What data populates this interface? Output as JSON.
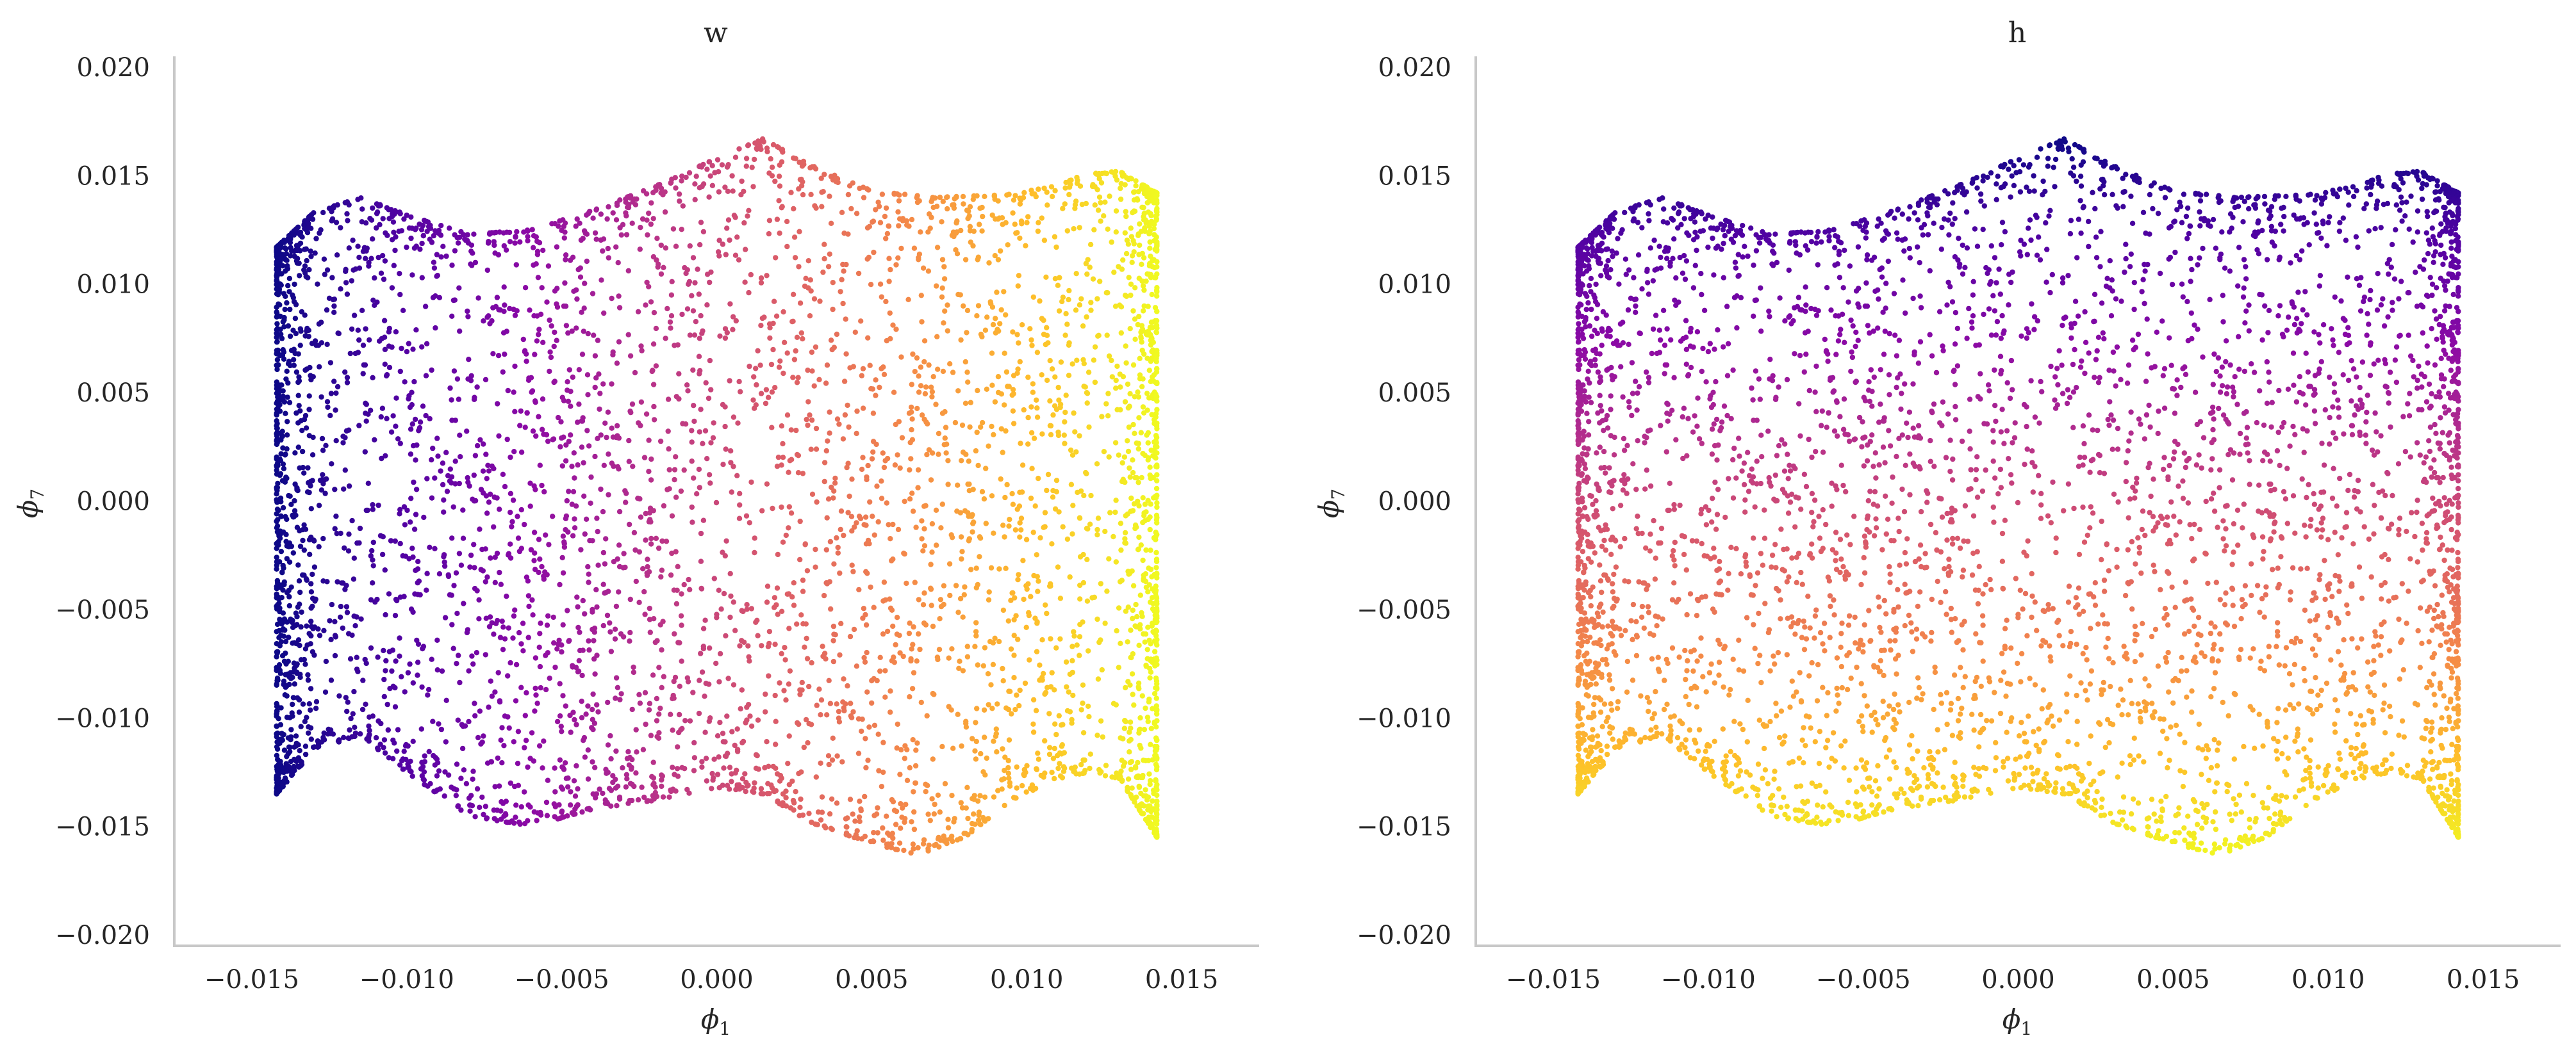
{
  "colors": {
    "background": "#ffffff",
    "axis_spine": "#c8c8c8",
    "text": "#262626",
    "colormap": "plasma",
    "colormap_stops": [
      "#0d0887",
      "#5302a3",
      "#8b0aa5",
      "#b83289",
      "#db5c68",
      "#f48849",
      "#febd2a",
      "#f0f921"
    ]
  },
  "chart_data": [
    {
      "type": "scatter",
      "title": "w",
      "xlabel": "ϕ",
      "xlabel_sub": "1",
      "ylabel": "ϕ",
      "ylabel_sub": "7",
      "xlim": [
        -0.0175,
        0.0175
      ],
      "ylim": [
        -0.0205,
        0.0205
      ],
      "xticks": [
        -0.015,
        -0.01,
        -0.005,
        0.0,
        0.005,
        0.01,
        0.015
      ],
      "yticks": [
        -0.02,
        -0.015,
        -0.01,
        -0.005,
        0.0,
        0.005,
        0.01,
        0.015,
        0.02
      ],
      "xtick_labels": [
        "−0.015",
        "−0.010",
        "−0.005",
        "0.000",
        "0.005",
        "0.010",
        "0.015"
      ],
      "ytick_labels": [
        "−0.020",
        "−0.015",
        "−0.010",
        "−0.005",
        "0.000",
        "0.005",
        "0.010",
        "0.015",
        "0.020"
      ],
      "grid": false,
      "color_by": "x",
      "point_count": 5000,
      "x_range": [
        -0.0142,
        0.0142
      ],
      "upper_boundary": {
        "x": [
          -0.0142,
          -0.013,
          -0.0115,
          -0.01,
          -0.008,
          -0.006,
          -0.004,
          -0.002,
          0.0,
          0.0015,
          0.003,
          0.005,
          0.007,
          0.009,
          0.0105,
          0.012,
          0.013,
          0.0142
        ],
        "y": [
          0.0117,
          0.0133,
          0.014,
          0.0132,
          0.0123,
          0.0125,
          0.0134,
          0.0145,
          0.0158,
          0.0167,
          0.0155,
          0.0143,
          0.014,
          0.0141,
          0.0144,
          0.0151,
          0.0152,
          0.0142
        ]
      },
      "lower_boundary": {
        "x": [
          -0.0142,
          -0.013,
          -0.0115,
          -0.01,
          -0.008,
          -0.006,
          -0.004,
          -0.002,
          0.0,
          0.0015,
          0.003,
          0.005,
          0.0065,
          0.008,
          0.0095,
          0.011,
          0.012,
          0.013,
          0.0142
        ],
        "y": [
          -0.0135,
          -0.0115,
          -0.0108,
          -0.0125,
          -0.0145,
          -0.015,
          -0.0142,
          -0.0138,
          -0.0132,
          -0.0135,
          -0.0148,
          -0.0158,
          -0.0163,
          -0.0155,
          -0.0138,
          -0.0128,
          -0.0125,
          -0.0128,
          -0.0155
        ]
      }
    },
    {
      "type": "scatter",
      "title": "h",
      "xlabel": "ϕ",
      "xlabel_sub": "1",
      "ylabel": "ϕ",
      "ylabel_sub": "7",
      "xlim": [
        -0.0175,
        0.0175
      ],
      "ylim": [
        -0.0205,
        0.0205
      ],
      "xticks": [
        -0.015,
        -0.01,
        -0.005,
        0.0,
        0.005,
        0.01,
        0.015
      ],
      "yticks": [
        -0.02,
        -0.015,
        -0.01,
        -0.005,
        0.0,
        0.005,
        0.01,
        0.015,
        0.02
      ],
      "xtick_labels": [
        "−0.015",
        "−0.010",
        "−0.005",
        "0.000",
        "0.005",
        "0.010",
        "0.015"
      ],
      "ytick_labels": [
        "−0.020",
        "−0.015",
        "−0.010",
        "−0.005",
        "0.000",
        "0.005",
        "0.010",
        "0.015",
        "0.020"
      ],
      "grid": false,
      "color_by": "y_inverted",
      "point_count": 5000,
      "x_range": [
        -0.0142,
        0.0142
      ],
      "upper_boundary": {
        "x": [
          -0.0142,
          -0.013,
          -0.0115,
          -0.01,
          -0.008,
          -0.006,
          -0.004,
          -0.002,
          0.0,
          0.0015,
          0.003,
          0.005,
          0.007,
          0.009,
          0.0105,
          0.012,
          0.013,
          0.0142
        ],
        "y": [
          0.0117,
          0.0133,
          0.014,
          0.0132,
          0.0123,
          0.0125,
          0.0134,
          0.0145,
          0.0158,
          0.0167,
          0.0155,
          0.0143,
          0.014,
          0.0141,
          0.0144,
          0.0151,
          0.0152,
          0.0142
        ]
      },
      "lower_boundary": {
        "x": [
          -0.0142,
          -0.013,
          -0.0115,
          -0.01,
          -0.008,
          -0.006,
          -0.004,
          -0.002,
          0.0,
          0.0015,
          0.003,
          0.005,
          0.0065,
          0.008,
          0.0095,
          0.011,
          0.012,
          0.013,
          0.0142
        ],
        "y": [
          -0.0135,
          -0.0115,
          -0.0108,
          -0.0125,
          -0.0145,
          -0.015,
          -0.0142,
          -0.0138,
          -0.0132,
          -0.0135,
          -0.0148,
          -0.0158,
          -0.0163,
          -0.0155,
          -0.0138,
          -0.0128,
          -0.0125,
          -0.0128,
          -0.0155
        ]
      }
    }
  ]
}
